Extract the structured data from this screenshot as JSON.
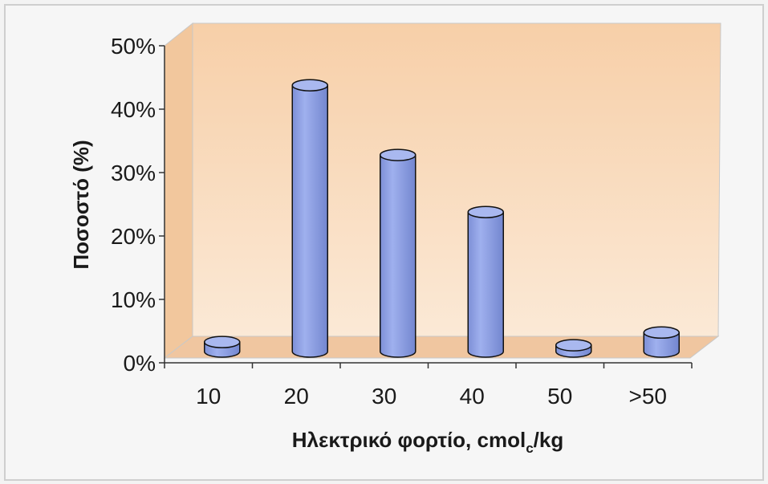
{
  "chart_data": {
    "type": "bar",
    "style": "3d-cylinder",
    "categories": [
      "10",
      "20",
      "30",
      "40",
      "50",
      ">50"
    ],
    "values": [
      1.5,
      42,
      31,
      22,
      1,
      3
    ],
    "ylim": [
      0,
      50
    ],
    "yticks": [
      "0%",
      "10%",
      "20%",
      "30%",
      "40%",
      "50%"
    ],
    "ylabel": "Ποσοστό (%)",
    "xlabel": {
      "main": "Ηλεκτρικό φορτίο, cmol",
      "subscript": "c",
      "suffix": "/kg"
    },
    "grid": false,
    "legend": "none",
    "colors": {
      "bar_fill": "#93a5e8",
      "bar_top": "#a9b8ef",
      "bar_stroke": "#111111",
      "wall_top": "#f7cfa8",
      "wall_bottom": "#fbe9d6",
      "floor": "#f1c9a2",
      "page_bg": "#f3f3f3"
    }
  }
}
